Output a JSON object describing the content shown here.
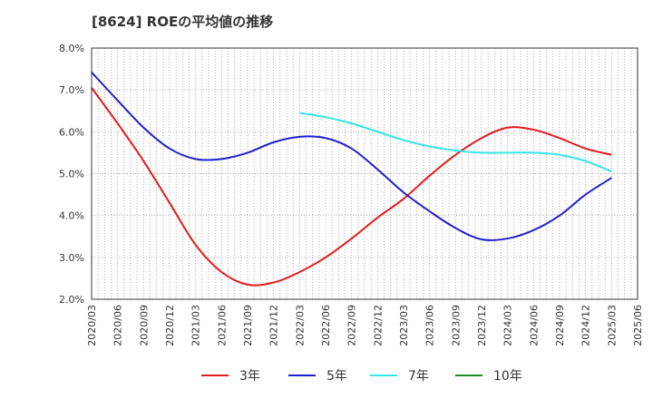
{
  "chart_data": {
    "type": "line",
    "title": "[8624]  ROEの平均値の推移",
    "xlabel": "",
    "ylabel": "",
    "ylim": [
      2.0,
      8.0
    ],
    "y_ticks": [
      "2.0%",
      "3.0%",
      "4.0%",
      "5.0%",
      "6.0%",
      "7.0%",
      "8.0%"
    ],
    "y_tick_values": [
      2.0,
      3.0,
      4.0,
      5.0,
      6.0,
      7.0,
      8.0
    ],
    "categories": [
      "2020/03",
      "2020/06",
      "2020/09",
      "2020/12",
      "2021/03",
      "2021/06",
      "2021/09",
      "2021/12",
      "2022/03",
      "2022/06",
      "2022/09",
      "2022/12",
      "2023/03",
      "2023/06",
      "2023/09",
      "2023/12",
      "2024/03",
      "2024/06",
      "2024/09",
      "2024/12",
      "2025/03",
      "2025/06"
    ],
    "legend_position": "bottom",
    "grid": true,
    "series": [
      {
        "name": "3年",
        "color": "#e31a1c",
        "values": [
          7.05,
          6.2,
          5.3,
          4.3,
          3.3,
          2.65,
          2.35,
          2.4,
          2.65,
          3.0,
          3.45,
          3.95,
          4.4,
          4.95,
          5.45,
          5.85,
          6.1,
          6.05,
          5.85,
          5.6,
          5.45,
          null
        ]
      },
      {
        "name": "5年",
        "color": "#1f1fcf",
        "values": [
          7.42,
          6.75,
          6.1,
          5.6,
          5.35,
          5.35,
          5.5,
          5.75,
          5.88,
          5.85,
          5.6,
          5.1,
          4.55,
          4.1,
          3.7,
          3.43,
          3.45,
          3.65,
          4.0,
          4.5,
          4.9,
          null
        ]
      },
      {
        "name": "7年",
        "color": "#33e6e6",
        "values": [
          null,
          null,
          null,
          null,
          null,
          null,
          null,
          null,
          6.45,
          6.35,
          6.2,
          6.0,
          5.8,
          5.65,
          5.55,
          5.5,
          5.5,
          5.5,
          5.45,
          5.3,
          5.05,
          null
        ]
      },
      {
        "name": "10年",
        "color": "#228b22",
        "values": [
          null,
          null,
          null,
          null,
          null,
          null,
          null,
          null,
          null,
          null,
          null,
          null,
          null,
          null,
          null,
          null,
          null,
          null,
          null,
          null,
          null,
          null
        ]
      }
    ]
  }
}
